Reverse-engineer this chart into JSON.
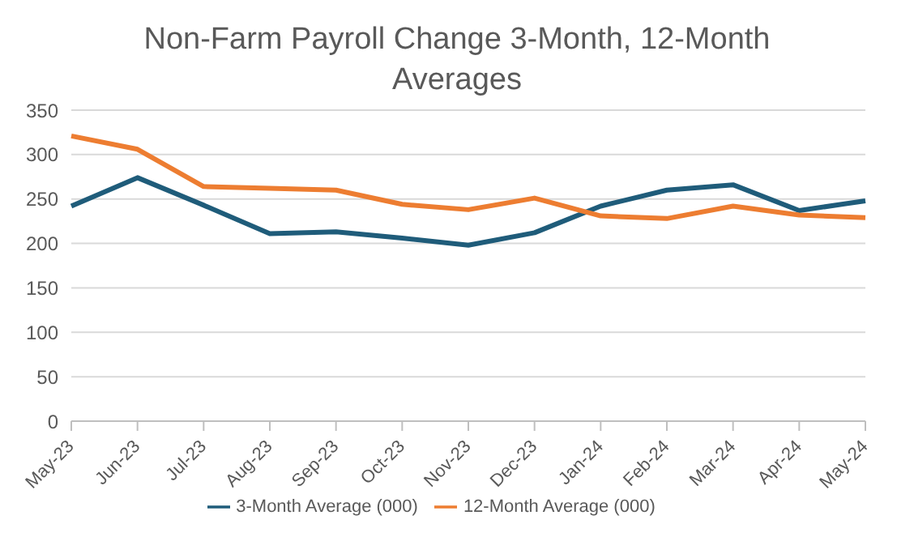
{
  "chart_data": {
    "type": "line",
    "title": "Non-Farm Payroll Change 3-Month, 12-Month Averages",
    "categories": [
      "May-23",
      "Jun-23",
      "Jul-23",
      "Aug-23",
      "Sep-23",
      "Oct-23",
      "Nov-23",
      "Dec-23",
      "Jan-24",
      "Feb-24",
      "Mar-24",
      "Apr-24",
      "May-24"
    ],
    "series": [
      {
        "name": "3-Month Average (000)",
        "color": "#1f5c7a",
        "values": [
          242,
          274,
          243,
          211,
          213,
          206,
          198,
          212,
          242,
          260,
          266,
          237,
          248
        ]
      },
      {
        "name": "12-Month Average (000)",
        "color": "#ed7d31",
        "values": [
          321,
          306,
          264,
          262,
          260,
          244,
          238,
          251,
          231,
          228,
          242,
          232,
          229
        ]
      }
    ],
    "ylim": [
      0,
      350
    ],
    "yticks": [
      0,
      50,
      100,
      150,
      200,
      250,
      300,
      350
    ],
    "grid": "y",
    "legend": "bottom",
    "marker": "none"
  }
}
